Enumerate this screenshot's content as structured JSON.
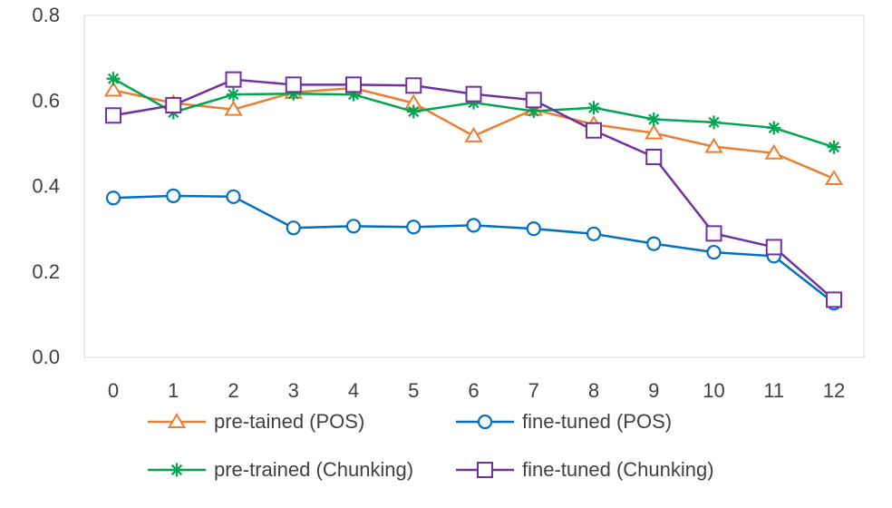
{
  "chart_data": {
    "type": "line",
    "title": "",
    "xlabel": "",
    "ylabel": "",
    "x": [
      "0",
      "1",
      "2",
      "3",
      "4",
      "5",
      "6",
      "7",
      "8",
      "9",
      "10",
      "11",
      "12"
    ],
    "ylim": [
      0,
      0.8
    ],
    "yticks": [
      "0.0",
      "0.2",
      "0.4",
      "0.6",
      "0.8"
    ],
    "grid": false,
    "legend_position": "bottom",
    "series": [
      {
        "name": "pre-tained (POS)",
        "color": "#ED7D31",
        "marker": "triangle",
        "values": [
          0.625,
          0.595,
          0.58,
          0.62,
          0.63,
          0.595,
          0.518,
          0.58,
          0.545,
          0.525,
          0.493,
          0.478,
          0.418
        ]
      },
      {
        "name": "fine-tuned (POS)",
        "color": "#0070C0",
        "marker": "circle",
        "values": [
          0.373,
          0.378,
          0.376,
          0.303,
          0.307,
          0.305,
          0.309,
          0.301,
          0.289,
          0.266,
          0.246,
          0.237,
          0.127
        ]
      },
      {
        "name": "pre-trained (Chunking)",
        "color": "#00A550",
        "marker": "asterisk",
        "values": [
          0.652,
          0.573,
          0.615,
          0.617,
          0.615,
          0.575,
          0.596,
          0.576,
          0.584,
          0.557,
          0.55,
          0.537,
          0.492
        ]
      },
      {
        "name": "fine-tuned (Chunking)",
        "color": "#7030A0",
        "marker": "square",
        "values": [
          0.566,
          0.59,
          0.65,
          0.638,
          0.638,
          0.636,
          0.616,
          0.602,
          0.531,
          0.469,
          0.29,
          0.258,
          0.135
        ]
      }
    ]
  }
}
